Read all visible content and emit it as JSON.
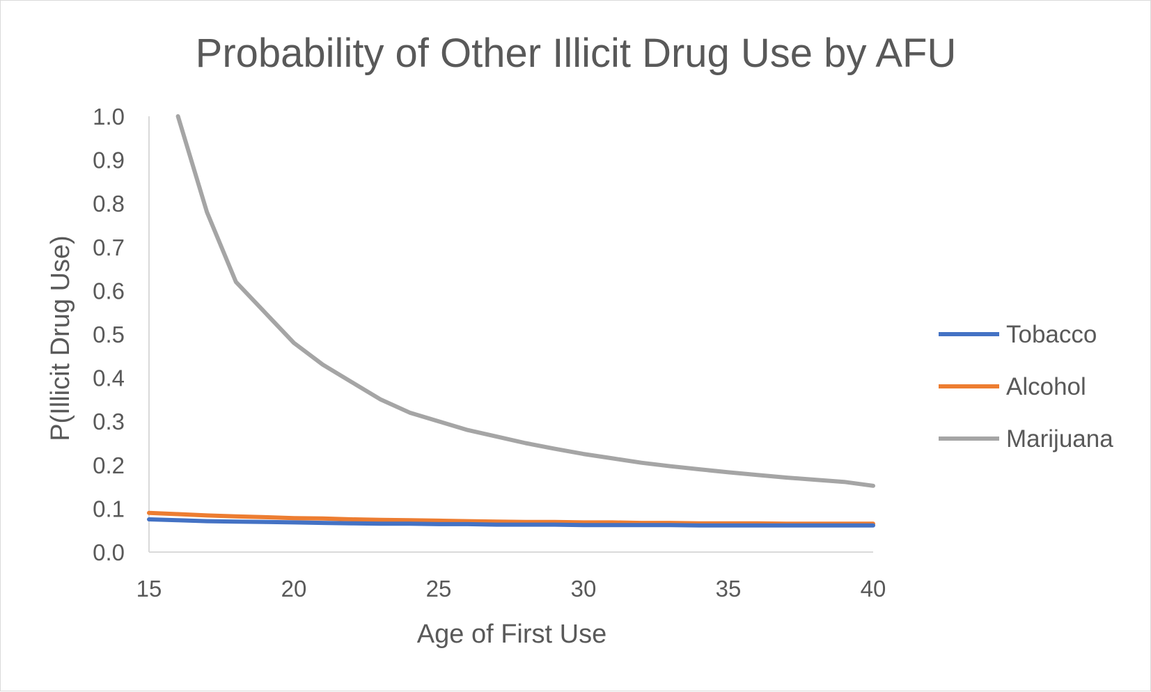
{
  "chart_data": {
    "type": "line",
    "title": "Probability of Other Illicit Drug Use by AFU",
    "xlabel": "Age of First Use",
    "ylabel": "P(Illicit Drug Use)",
    "xlim": [
      15,
      40
    ],
    "ylim": [
      0,
      1
    ],
    "x_ticks": [
      "15",
      "20",
      "25",
      "30",
      "35",
      "40"
    ],
    "y_ticks": [
      "0.0",
      "0.1",
      "0.2",
      "0.3",
      "0.4",
      "0.5",
      "0.6",
      "0.7",
      "0.8",
      "0.9",
      "1.0"
    ],
    "grid": false,
    "legend_position": "right",
    "x": [
      15,
      16,
      17,
      18,
      19,
      20,
      21,
      22,
      23,
      24,
      25,
      26,
      27,
      28,
      29,
      30,
      31,
      32,
      33,
      34,
      35,
      36,
      37,
      38,
      39,
      40
    ],
    "series": [
      {
        "name": "Tobacco",
        "color": "#4472c4",
        "values": [
          0.075,
          0.073,
          0.071,
          0.07,
          0.069,
          0.068,
          0.067,
          0.066,
          0.065,
          0.065,
          0.064,
          0.064,
          0.063,
          0.063,
          0.063,
          0.062,
          0.062,
          0.062,
          0.062,
          0.061,
          0.061,
          0.061,
          0.061,
          0.061,
          0.061,
          0.061
        ]
      },
      {
        "name": "Alcohol",
        "color": "#ed7d31",
        "values": [
          0.09,
          0.087,
          0.084,
          0.082,
          0.08,
          0.078,
          0.077,
          0.075,
          0.074,
          0.073,
          0.072,
          0.071,
          0.07,
          0.069,
          0.069,
          0.068,
          0.068,
          0.067,
          0.067,
          0.066,
          0.066,
          0.066,
          0.065,
          0.065,
          0.065,
          0.065
        ]
      },
      {
        "name": "Marijuana",
        "color": "#a5a5a5",
        "values": [
          null,
          1.0,
          0.78,
          0.62,
          0.55,
          0.48,
          0.43,
          0.39,
          0.35,
          0.32,
          0.3,
          0.28,
          0.265,
          0.25,
          0.237,
          0.225,
          0.215,
          0.205,
          0.197,
          0.19,
          0.183,
          0.177,
          0.171,
          0.166,
          0.161,
          0.152
        ]
      }
    ]
  }
}
